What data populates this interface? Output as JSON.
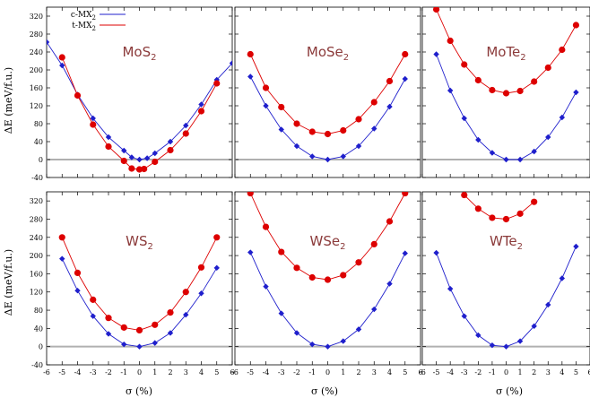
{
  "figure": {
    "ylabel": "ΔE (meV/f.u.)",
    "xlabel": "σ (%)",
    "legend": [
      {
        "label": "c-MX",
        "sub": "2",
        "color": "#1f1fcc",
        "marker": "diamond"
      },
      {
        "label": "t-MX",
        "sub": "2",
        "color": "#dd0000",
        "marker": "circle"
      }
    ],
    "legend_placement": "top-left of first panel",
    "zero_line_color": "#b0b0b0"
  },
  "chart_data": [
    {
      "type": "line",
      "panel": "MoS2",
      "title": "MoS",
      "title_sub": "2",
      "xlim": [
        -6,
        6
      ],
      "ylim": [
        -40,
        340
      ],
      "xticks": [
        -6,
        -5,
        -4,
        -3,
        -2,
        -1,
        0,
        1,
        2,
        3,
        4,
        5,
        6
      ],
      "yticks": [
        -40,
        0,
        40,
        80,
        120,
        160,
        200,
        240,
        280,
        320
      ],
      "series": [
        {
          "name": "c-MX2",
          "color": "#1f1fcc",
          "marker": "diamond",
          "x": [
            -6,
            -5,
            -4,
            -3,
            -2,
            -1,
            -0.5,
            0,
            0.5,
            1,
            2,
            3,
            4,
            5,
            6
          ],
          "y": [
            262,
            210,
            145,
            92,
            50,
            20,
            5,
            0,
            3,
            14,
            40,
            76,
            123,
            178,
            215
          ]
        },
        {
          "name": "t-MX2",
          "color": "#dd0000",
          "marker": "circle",
          "x": [
            -5,
            -4,
            -3,
            -2,
            -1,
            -0.5,
            0,
            0.3,
            1,
            2,
            3,
            4,
            5
          ],
          "y": [
            228,
            143,
            78,
            29,
            -3,
            -20,
            -22,
            -21,
            -5,
            21,
            58,
            108,
            170
          ]
        }
      ]
    },
    {
      "type": "line",
      "panel": "MoSe2",
      "title": "MoSe",
      "title_sub": "2",
      "xlim": [
        -6,
        6
      ],
      "ylim": [
        -40,
        340
      ],
      "xticks": [
        -6,
        -5,
        -4,
        -3,
        -2,
        -1,
        0,
        1,
        2,
        3,
        4,
        5,
        6
      ],
      "series": [
        {
          "name": "c-MX2",
          "color": "#1f1fcc",
          "marker": "diamond",
          "x": [
            -5,
            -4,
            -3,
            -2,
            -1,
            0,
            1,
            2,
            3,
            4,
            5
          ],
          "y": [
            185,
            120,
            67,
            30,
            7,
            0,
            7,
            30,
            69,
            118,
            180
          ]
        },
        {
          "name": "t-MX2",
          "color": "#dd0000",
          "marker": "circle",
          "x": [
            -5,
            -4,
            -3,
            -2,
            -1,
            0,
            1,
            2,
            3,
            4,
            5
          ],
          "y": [
            235,
            160,
            117,
            80,
            62,
            57,
            65,
            90,
            128,
            175,
            235
          ]
        }
      ]
    },
    {
      "type": "line",
      "panel": "MoTe2",
      "title": "MoTe",
      "title_sub": "2",
      "xlim": [
        -6,
        6
      ],
      "ylim": [
        -40,
        340
      ],
      "xticks": [
        -6,
        -5,
        -4,
        -3,
        -2,
        -1,
        0,
        1,
        2,
        3,
        4,
        5,
        6
      ],
      "series": [
        {
          "name": "c-MX2",
          "color": "#1f1fcc",
          "marker": "diamond",
          "x": [
            -5,
            -4,
            -3,
            -2,
            -1,
            0,
            1,
            2,
            3,
            4,
            5
          ],
          "y": [
            235,
            154,
            92,
            44,
            15,
            0,
            0,
            18,
            50,
            94,
            150
          ]
        },
        {
          "name": "t-MX2",
          "color": "#dd0000",
          "marker": "circle",
          "x": [
            -5,
            -4,
            -3,
            -2,
            -1,
            0,
            1,
            2,
            3,
            4,
            5
          ],
          "y": [
            335,
            265,
            212,
            177,
            155,
            148,
            153,
            174,
            205,
            245,
            300
          ]
        }
      ]
    },
    {
      "type": "line",
      "panel": "WS2",
      "title": "WS",
      "title_sub": "2",
      "xlim": [
        -6,
        6
      ],
      "ylim": [
        -40,
        340
      ],
      "xticks": [
        -6,
        -5,
        -4,
        -3,
        -2,
        -1,
        0,
        1,
        2,
        3,
        4,
        5,
        6
      ],
      "yticks": [
        -40,
        0,
        40,
        80,
        120,
        160,
        200,
        240,
        280,
        320
      ],
      "series": [
        {
          "name": "c-MX2",
          "color": "#1f1fcc",
          "marker": "diamond",
          "x": [
            -5,
            -4,
            -3,
            -2,
            -1,
            0,
            1,
            2,
            3,
            4,
            5
          ],
          "y": [
            193,
            123,
            67,
            28,
            5,
            0,
            8,
            30,
            70,
            117,
            173
          ]
        },
        {
          "name": "t-MX2",
          "color": "#dd0000",
          "marker": "circle",
          "x": [
            -5,
            -4,
            -3,
            -2,
            -1,
            0,
            1,
            2,
            3,
            4,
            5
          ],
          "y": [
            240,
            162,
            103,
            63,
            42,
            36,
            48,
            75,
            120,
            174,
            240
          ]
        }
      ]
    },
    {
      "type": "line",
      "panel": "WSe2",
      "title": "WSe",
      "title_sub": "2",
      "xlim": [
        -6,
        6
      ],
      "ylim": [
        -40,
        340
      ],
      "xticks": [
        -6,
        -5,
        -4,
        -3,
        -2,
        -1,
        0,
        1,
        2,
        3,
        4,
        5,
        6
      ],
      "series": [
        {
          "name": "c-MX2",
          "color": "#1f1fcc",
          "marker": "diamond",
          "x": [
            -5,
            -4,
            -3,
            -2,
            -1,
            0,
            1,
            2,
            3,
            4,
            5
          ],
          "y": [
            207,
            132,
            73,
            30,
            5,
            0,
            12,
            38,
            82,
            138,
            205
          ]
        },
        {
          "name": "t-MX2",
          "color": "#dd0000",
          "marker": "circle",
          "x": [
            -5,
            -4,
            -3,
            -2,
            -1,
            0,
            1,
            2,
            3,
            4,
            5
          ],
          "y": [
            337,
            263,
            208,
            173,
            152,
            147,
            157,
            185,
            225,
            275,
            337
          ]
        }
      ]
    },
    {
      "type": "line",
      "panel": "WTe2",
      "title": "WTe",
      "title_sub": "2",
      "xlim": [
        -6,
        6
      ],
      "ylim": [
        -40,
        340
      ],
      "xticks": [
        -6,
        -5,
        -4,
        -3,
        -2,
        -1,
        0,
        1,
        2,
        3,
        4,
        5,
        6
      ],
      "series": [
        {
          "name": "c-MX2",
          "color": "#1f1fcc",
          "marker": "diamond",
          "x": [
            -5,
            -4,
            -3,
            -2,
            -1,
            0,
            1,
            2,
            3,
            4,
            5
          ],
          "y": [
            206,
            127,
            67,
            25,
            3,
            0,
            12,
            45,
            92,
            150,
            220
          ]
        },
        {
          "name": "t-MX2",
          "color": "#dd0000",
          "marker": "circle",
          "x": [
            -3,
            -2,
            -1,
            0,
            1,
            2
          ],
          "y": [
            333,
            303,
            283,
            280,
            292,
            318
          ]
        }
      ]
    }
  ]
}
